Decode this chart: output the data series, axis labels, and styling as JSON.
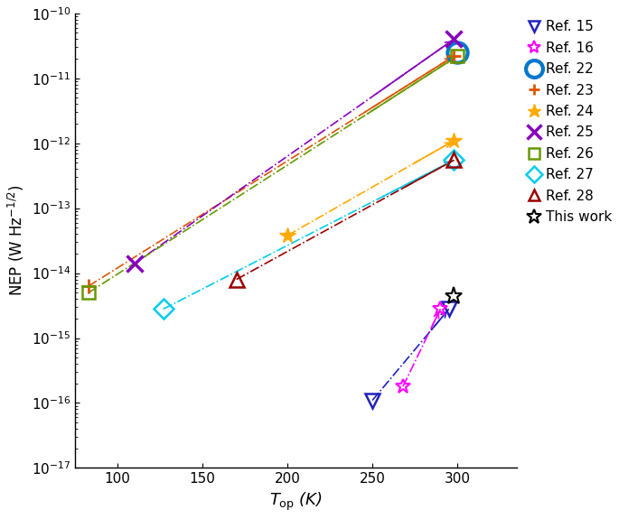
{
  "xlabel": "$T_{\\mathrm{op}}$ (K)",
  "ylabel": "NEP (W Hz$^{-1/2}$)",
  "xlim": [
    75,
    335
  ],
  "ylim": [
    1e-17,
    1e-10
  ],
  "series": [
    {
      "label": "Ref. 15",
      "color": "#2222bb",
      "marker": "v",
      "markersize": 11,
      "mew": 1.8,
      "points": [
        [
          250,
          1.1e-16
        ],
        [
          295,
          2.8e-15
        ]
      ],
      "connect": true,
      "fillstyle": "none"
    },
    {
      "label": "Ref. 16",
      "color": "#ff00ff",
      "marker": "hexstar",
      "markersize": 12,
      "mew": 1.5,
      "points": [
        [
          268,
          1.8e-16
        ],
        [
          290,
          2.8e-15
        ]
      ],
      "connect": true,
      "fillstyle": "none"
    },
    {
      "label": "Ref. 22",
      "color": "#0077cc",
      "marker": "o",
      "markersize": 16,
      "mew": 3.0,
      "points": [
        [
          300,
          2.5e-11
        ]
      ],
      "connect": false,
      "fillstyle": "none"
    },
    {
      "label": "Ref. 23",
      "color": "#dd5500",
      "marker": "P",
      "markersize": 11,
      "mew": 2.0,
      "points": [
        [
          83,
          6.3e-15
        ],
        [
          298,
          2.2e-11
        ]
      ],
      "connect": true,
      "fillstyle": "full"
    },
    {
      "label": "Ref. 24",
      "color": "#ffaa00",
      "marker": "asterisk",
      "markersize": 13,
      "mew": 2.0,
      "points": [
        [
          200,
          3.8e-14
        ],
        [
          298,
          1.1e-12
        ]
      ],
      "connect": true,
      "fillstyle": "full"
    },
    {
      "label": "Ref. 25",
      "color": "#8800bb",
      "marker": "x",
      "markersize": 13,
      "mew": 2.5,
      "points": [
        [
          110,
          1.4e-14
        ],
        [
          298,
          4e-11
        ]
      ],
      "connect": true,
      "fillstyle": "full"
    },
    {
      "label": "Ref. 26",
      "color": "#669900",
      "marker": "s",
      "markersize": 10,
      "mew": 1.8,
      "points": [
        [
          83,
          5e-15
        ],
        [
          300,
          2.2e-11
        ]
      ],
      "connect": true,
      "fillstyle": "none"
    },
    {
      "label": "Ref. 27",
      "color": "#00ccee",
      "marker": "D",
      "markersize": 11,
      "mew": 1.8,
      "points": [
        [
          127,
          2.8e-15
        ],
        [
          298,
          5.5e-13
        ]
      ],
      "connect": true,
      "fillstyle": "none"
    },
    {
      "label": "Ref. 28",
      "color": "#990000",
      "marker": "^",
      "markersize": 11,
      "mew": 1.8,
      "points": [
        [
          170,
          8e-15
        ],
        [
          298,
          5.5e-13
        ]
      ],
      "connect": true,
      "fillstyle": "none"
    },
    {
      "label": "This work",
      "color": "#000000",
      "marker": "hexstar",
      "markersize": 14,
      "mew": 1.5,
      "points": [
        [
          298,
          4.5e-15
        ]
      ],
      "connect": false,
      "fillstyle": "none"
    }
  ],
  "legend_fontsize": 11,
  "tick_labelsize": 11,
  "axis_labelsize": 13
}
